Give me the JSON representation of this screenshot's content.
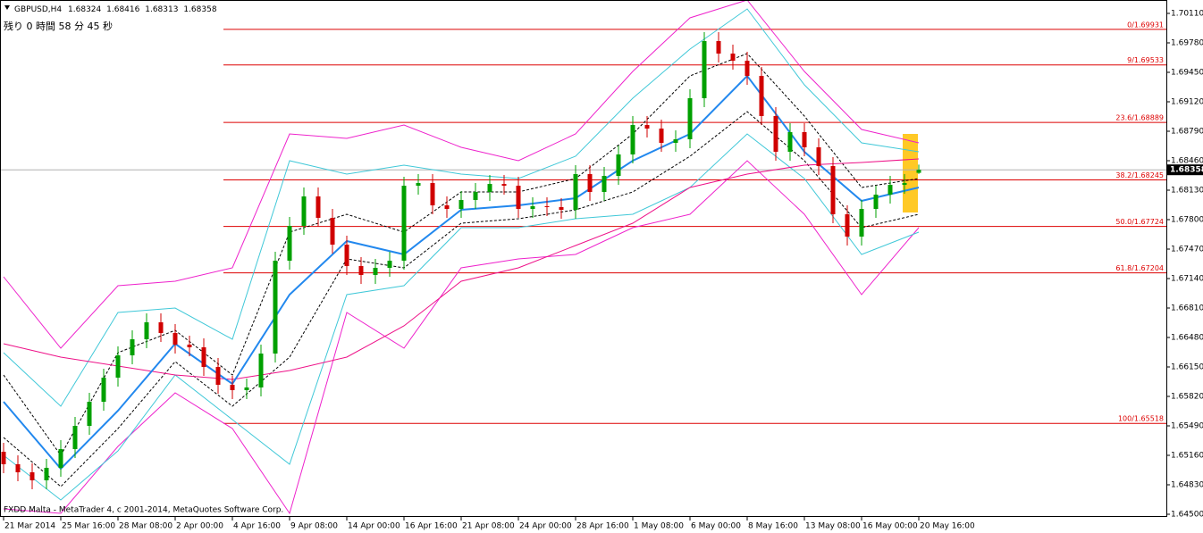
{
  "chart_data": {
    "type": "candlestick",
    "symbol": "GBPUSD,H4",
    "timer": "残り 0 時間 58 分 45 秒",
    "footer": "FXDD Malta - MetaTrader 4, c 2001-2014, MetaQuotes Software Corp.",
    "up_color": "#00a000",
    "down_color": "#d00000",
    "x": [
      0,
      4,
      8,
      12,
      16,
      20,
      24,
      28,
      32,
      36,
      40,
      44,
      48,
      52,
      56,
      60,
      64,
      68,
      72,
      76,
      80,
      84,
      88,
      92,
      96,
      100,
      104,
      108,
      112,
      116,
      120,
      124,
      128,
      132,
      136,
      140,
      144,
      148,
      152,
      156,
      160,
      164,
      168,
      172,
      176,
      180,
      184,
      188,
      192,
      196,
      200,
      204,
      208,
      212,
      216,
      220,
      224,
      228,
      232,
      236,
      240,
      244,
      248,
      252,
      256
    ],
    "open": [
      1.652,
      1.6506,
      1.6497,
      1.6488,
      1.6502,
      1.6523,
      1.6549,
      1.6576,
      1.6603,
      1.6628,
      1.6646,
      1.6665,
      1.6653,
      1.664,
      1.6637,
      1.6615,
      1.6595,
      1.6589,
      1.6592,
      1.663,
      1.6734,
      1.6773,
      1.6806,
      1.6782,
      1.6752,
      1.6728,
      1.6718,
      1.6726,
      1.6734,
      1.6818,
      1.6821,
      1.6796,
      1.6792,
      1.6802,
      1.6811,
      1.682,
      1.6818,
      1.6792,
      1.6795,
      1.6794,
      1.6791,
      1.6831,
      1.6811,
      1.6829,
      1.6853,
      1.6886,
      1.6882,
      1.6866,
      1.687,
      1.6916,
      1.698,
      1.6966,
      1.6958,
      1.6941,
      1.6896,
      1.6856,
      1.6878,
      1.6861,
      1.684,
      1.6786,
      1.6761,
      1.6792,
      1.6808,
      1.6819,
      1.68324
    ],
    "high": [
      1.653,
      1.6516,
      1.6507,
      1.6512,
      1.6533,
      1.6559,
      1.6586,
      1.6613,
      1.6638,
      1.6656,
      1.6675,
      1.6675,
      1.6663,
      1.665,
      1.6647,
      1.6625,
      1.6605,
      1.6602,
      1.664,
      1.6744,
      1.6783,
      1.6816,
      1.6816,
      1.6792,
      1.6762,
      1.6738,
      1.6736,
      1.6744,
      1.6828,
      1.6831,
      1.6831,
      1.6806,
      1.6812,
      1.6821,
      1.683,
      1.683,
      1.6828,
      1.6805,
      1.6805,
      1.6804,
      1.6841,
      1.6841,
      1.6839,
      1.6863,
      1.6896,
      1.6896,
      1.6892,
      1.688,
      1.6926,
      1.699,
      1.699,
      1.6976,
      1.6968,
      1.6951,
      1.6906,
      1.6888,
      1.6888,
      1.6871,
      1.685,
      1.6796,
      1.6802,
      1.6818,
      1.6829,
      1.6831,
      1.68416
    ],
    "low": [
      1.6496,
      1.6487,
      1.6478,
      1.6478,
      1.6492,
      1.6513,
      1.6539,
      1.6566,
      1.6593,
      1.6618,
      1.6636,
      1.6643,
      1.663,
      1.6627,
      1.6605,
      1.6585,
      1.6579,
      1.6579,
      1.6582,
      1.662,
      1.6724,
      1.6763,
      1.6772,
      1.6742,
      1.6718,
      1.6708,
      1.6708,
      1.6716,
      1.6724,
      1.6808,
      1.6786,
      1.6782,
      1.6782,
      1.6792,
      1.6801,
      1.6808,
      1.6782,
      1.6782,
      1.6784,
      1.6781,
      1.6781,
      1.6801,
      1.6801,
      1.6819,
      1.6843,
      1.6872,
      1.6856,
      1.6856,
      1.686,
      1.6906,
      1.6956,
      1.6948,
      1.6931,
      1.6886,
      1.6846,
      1.6846,
      1.6851,
      1.683,
      1.6776,
      1.6751,
      1.6751,
      1.6782,
      1.6798,
      1.6809,
      1.68313
    ],
    "close": [
      1.6506,
      1.6497,
      1.6488,
      1.6502,
      1.6523,
      1.6549,
      1.6576,
      1.6603,
      1.6628,
      1.6646,
      1.6665,
      1.6653,
      1.664,
      1.6637,
      1.6615,
      1.6595,
      1.6589,
      1.6592,
      1.663,
      1.6734,
      1.6773,
      1.6806,
      1.6782,
      1.6752,
      1.6728,
      1.6718,
      1.6726,
      1.6734,
      1.6818,
      1.6821,
      1.6796,
      1.6792,
      1.6802,
      1.6811,
      1.682,
      1.6818,
      1.6792,
      1.6795,
      1.6794,
      1.6791,
      1.6831,
      1.6811,
      1.6829,
      1.6853,
      1.6886,
      1.6882,
      1.6866,
      1.687,
      1.6916,
      1.698,
      1.6966,
      1.6958,
      1.6941,
      1.6896,
      1.6856,
      1.6878,
      1.6861,
      1.684,
      1.6786,
      1.6761,
      1.6792,
      1.6808,
      1.6819,
      1.6821,
      1.68358
    ],
    "line_x": [
      0,
      16,
      32,
      48,
      64,
      80,
      96,
      112,
      128,
      144,
      160,
      176,
      192,
      208,
      224,
      240,
      256
    ],
    "lines": [
      {
        "color": "#ee22cc",
        "values": [
          1.6716,
          1.6636,
          1.6706,
          1.6711,
          1.6726,
          1.6876,
          1.6871,
          1.6886,
          1.6861,
          1.6846,
          1.6876,
          1.6946,
          1.7006,
          1.7026,
          1.6946,
          1.6881,
          1.6866
        ]
      },
      {
        "color": "#ee22cc",
        "values": [
          1.6456,
          1.6451,
          1.6526,
          1.6586,
          1.6546,
          1.6451,
          1.6676,
          1.6636,
          1.6726,
          1.6736,
          1.6741,
          1.6771,
          1.6786,
          1.6846,
          1.6786,
          1.6696,
          1.6771
        ]
      },
      {
        "color": "#40c8d8",
        "values": [
          1.6631,
          1.6571,
          1.6676,
          1.6681,
          1.6646,
          1.6846,
          1.6831,
          1.6841,
          1.6831,
          1.6826,
          1.6851,
          1.6916,
          1.6971,
          1.7016,
          1.6931,
          1.6866,
          1.6856
        ]
      },
      {
        "color": "#40c8d8",
        "values": [
          1.6516,
          1.6466,
          1.6521,
          1.6606,
          1.6556,
          1.6506,
          1.6696,
          1.6706,
          1.6771,
          1.6771,
          1.6781,
          1.6786,
          1.6816,
          1.6876,
          1.6826,
          1.6741,
          1.6766
        ]
      },
      {
        "color": "#000000",
        "dashed": true,
        "values": [
          1.6606,
          1.6516,
          1.6631,
          1.6656,
          1.6606,
          1.6766,
          1.6786,
          1.6766,
          1.6811,
          1.6811,
          1.6826,
          1.6876,
          1.6941,
          1.6966,
          1.6896,
          1.6816,
          1.6826
        ]
      },
      {
        "color": "#000000",
        "dashed": true,
        "values": [
          1.6536,
          1.6481,
          1.6546,
          1.6621,
          1.6571,
          1.6626,
          1.6736,
          1.6726,
          1.6776,
          1.6781,
          1.6791,
          1.6811,
          1.6851,
          1.6901,
          1.6846,
          1.6771,
          1.6786
        ]
      },
      {
        "color": "#ee1188",
        "values": [
          1.6641,
          1.6626,
          1.6616,
          1.6606,
          1.6601,
          1.6611,
          1.6626,
          1.6661,
          1.6711,
          1.6726,
          1.6751,
          1.6776,
          1.6816,
          1.6831,
          1.6841,
          1.6844,
          1.6848
        ]
      },
      {
        "color": "#2288ee",
        "values": [
          1.6576,
          1.6501,
          1.6566,
          1.6641,
          1.6596,
          1.6696,
          1.6756,
          1.6741,
          1.6791,
          1.6796,
          1.6804,
          1.6846,
          1.6876,
          1.6941,
          1.6856,
          1.6801,
          1.6816
        ]
      }
    ],
    "fib_color": "#dd0000",
    "fib_levels": [
      {
        "value": 1.69931,
        "label": "0/1.69931"
      },
      {
        "value": 1.69533,
        "label": "9/1.69533"
      },
      {
        "value": 1.68889,
        "label": "23.6/1.68889"
      },
      {
        "value": 1.68245,
        "label": "38.2/1.68245"
      },
      {
        "value": 1.67724,
        "label": "50.0/1.67724"
      },
      {
        "value": 1.67204,
        "label": "61.8/1.67204"
      },
      {
        "value": 1.65518,
        "label": "100/1.65518"
      }
    ],
    "xlim": [
      -1,
      325.25
    ],
    "xticks": [
      {
        "value": 0,
        "label": "21 Mar 2014"
      },
      {
        "value": 16,
        "label": "25 Mar 16:00"
      },
      {
        "value": 32,
        "label": "28 Mar 08:00"
      },
      {
        "value": 48,
        "label": "2 Apr 00:00"
      },
      {
        "value": 64,
        "label": "4 Apr 16:00"
      },
      {
        "value": 80,
        "label": "9 Apr 08:00"
      },
      {
        "value": 96,
        "label": "14 Apr 00:00"
      },
      {
        "value": 112,
        "label": "16 Apr 16:00"
      },
      {
        "value": 128,
        "label": "21 Apr 08:00"
      },
      {
        "value": 144,
        "label": "24 Apr 00:00"
      },
      {
        "value": 160,
        "label": "28 Apr 16:00"
      },
      {
        "value": 176,
        "label": "1 May 08:00"
      },
      {
        "value": 192,
        "label": "6 May 00:00"
      },
      {
        "value": 208,
        "label": "8 May 16:00"
      },
      {
        "value": 224,
        "label": "13 May 08:00"
      },
      {
        "value": 240,
        "label": "16 May 00:00"
      },
      {
        "value": 256,
        "label": "20 May 16:00"
      }
    ],
    "ylim": [
      1.6448,
      1.7026
    ],
    "yticks": [
      {
        "value": 1.7011,
        "label": "1.70110"
      },
      {
        "value": 1.6978,
        "label": "1.69780"
      },
      {
        "value": 1.6945,
        "label": "1.69450"
      },
      {
        "value": 1.6912,
        "label": "1.69120"
      },
      {
        "value": 1.6879,
        "label": "1.68790"
      },
      {
        "value": 1.6846,
        "label": "1.68460"
      },
      {
        "value": 1.6813,
        "label": "1.68130"
      },
      {
        "value": 1.678,
        "label": "1.67800"
      },
      {
        "value": 1.6747,
        "label": "1.67470"
      },
      {
        "value": 1.6714,
        "label": "1.67140"
      },
      {
        "value": 1.6681,
        "label": "1.66810"
      },
      {
        "value": 1.6648,
        "label": "1.66480"
      },
      {
        "value": 1.6615,
        "label": "1.66150"
      },
      {
        "value": 1.6582,
        "label": "1.65820"
      },
      {
        "value": 1.6549,
        "label": "1.65490"
      },
      {
        "value": 1.6516,
        "label": "1.65160"
      },
      {
        "value": 1.6483,
        "label": "1.64830"
      },
      {
        "value": 1.645,
        "label": "1.64500"
      }
    ]
  }
}
